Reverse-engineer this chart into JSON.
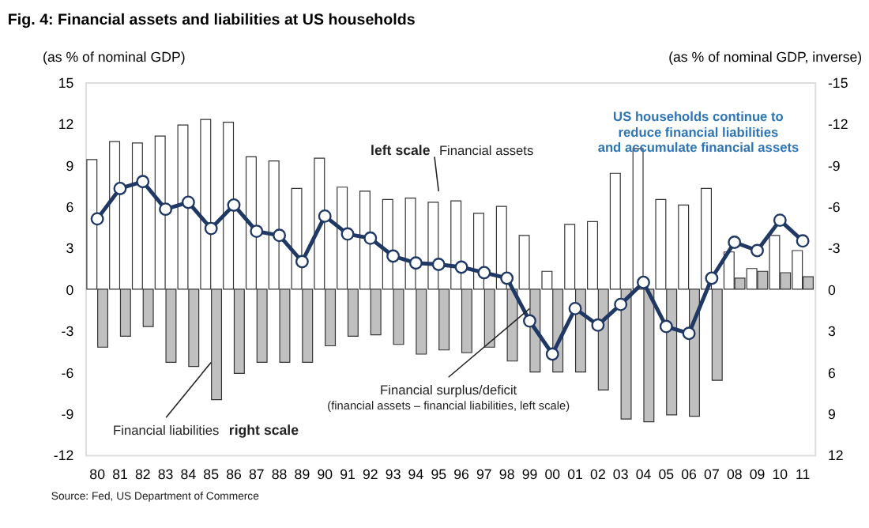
{
  "chart_data": {
    "type": "bar",
    "title": "Fig. 4:  Financial assets and liabilities at US households",
    "ylabel": "(as % of nominal GDP)",
    "y2label": "(as % of nominal GDP, inverse)",
    "categories": [
      "80",
      "81",
      "82",
      "83",
      "84",
      "85",
      "86",
      "87",
      "88",
      "89",
      "90",
      "91",
      "92",
      "93",
      "94",
      "95",
      "96",
      "97",
      "98",
      "99",
      "00",
      "01",
      "02",
      "03",
      "04",
      "05",
      "06",
      "07",
      "08",
      "09",
      "10",
      "11"
    ],
    "series": [
      {
        "name": "Financial assets",
        "type": "bar",
        "color": "#ffffff",
        "values": [
          9.4,
          10.7,
          10.6,
          11.1,
          11.9,
          12.3,
          12.1,
          9.6,
          9.3,
          7.3,
          9.5,
          7.4,
          7.1,
          6.5,
          6.6,
          6.3,
          6.4,
          5.5,
          6.0,
          3.9,
          1.3,
          4.7,
          4.9,
          8.4,
          10.2,
          6.5,
          6.1,
          7.3,
          2.7,
          1.5,
          3.9,
          2.8
        ]
      },
      {
        "name": "Financial liabilities",
        "type": "bar",
        "axis": "y2",
        "color": "#c0c0c0",
        "values": [
          4.2,
          3.4,
          2.7,
          5.3,
          5.6,
          8.0,
          6.1,
          5.3,
          5.3,
          5.3,
          4.1,
          3.4,
          3.3,
          4.0,
          4.7,
          4.4,
          4.6,
          4.2,
          5.2,
          6.0,
          6.0,
          6.0,
          7.3,
          9.4,
          9.6,
          9.1,
          9.2,
          6.6,
          -0.8,
          -1.3,
          -1.2,
          -0.9
        ]
      },
      {
        "name": "Financial surplus/deficit",
        "type": "line",
        "color": "#1f3864",
        "marker": "circle",
        "values": [
          5.1,
          7.3,
          7.8,
          5.8,
          6.3,
          4.4,
          6.1,
          4.2,
          3.9,
          2.0,
          5.3,
          4.0,
          3.7,
          2.4,
          1.9,
          1.8,
          1.6,
          1.2,
          0.8,
          -2.3,
          -4.7,
          -1.4,
          -2.6,
          -1.1,
          0.5,
          -2.7,
          -3.2,
          0.8,
          3.4,
          2.8,
          5.0,
          3.5
        ]
      }
    ],
    "ylim": [
      -12,
      15
    ],
    "yticks": [
      -12,
      -9,
      -6,
      -3,
      0,
      3,
      6,
      9,
      12,
      15
    ],
    "y2lim": [
      12,
      -15
    ],
    "y2ticks": [
      12,
      9,
      6,
      3,
      0,
      -3,
      -6,
      -9,
      -12,
      -15
    ],
    "grid": false,
    "annotations": [
      "left scale",
      "right scale",
      "(financial assets – financial liabilities, left scale)",
      "US households continue to reduce financial liabilities and accumulate financial assets",
      "Source: Fed, US Department of Commerce"
    ]
  }
}
